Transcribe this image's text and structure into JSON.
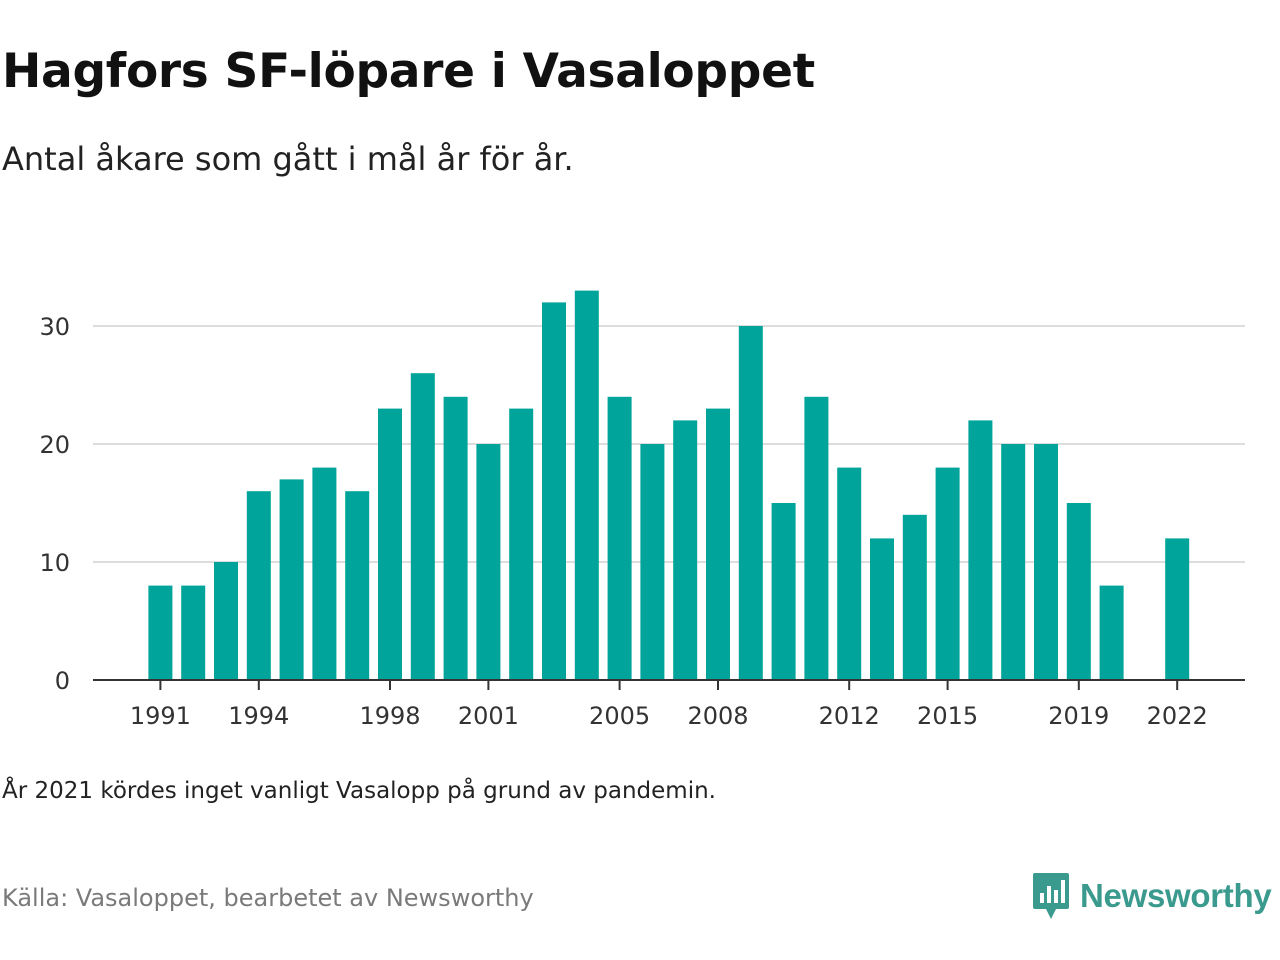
{
  "title": "Hagfors SF-löpare i Vasaloppet",
  "subtitle": "Antal åkare som gått i mål år för år.",
  "note": "År 2021 kördes inget vanligt Vasalopp på grund av pandemin.",
  "source": "Källa: Vasaloppet, bearbetet av Newsworthy",
  "brand": {
    "name": "Newsworthy",
    "icon": "newsworthy-logo-icon"
  },
  "colors": {
    "bar": "#00a49a",
    "grid": "#dddddd",
    "axis": "#333333",
    "brand": "#3a9a8e"
  },
  "chart_data": {
    "type": "bar",
    "title": "Hagfors SF-löpare i Vasaloppet",
    "subtitle": "Antal åkare som gått i mål år för år.",
    "x": [
      1991,
      1992,
      1993,
      1994,
      1995,
      1996,
      1997,
      1998,
      1999,
      2000,
      2001,
      2002,
      2003,
      2004,
      2005,
      2006,
      2007,
      2008,
      2009,
      2010,
      2011,
      2012,
      2013,
      2014,
      2015,
      2016,
      2017,
      2018,
      2019,
      2020,
      2021,
      2022
    ],
    "values": [
      8,
      8,
      10,
      16,
      17,
      18,
      16,
      23,
      26,
      24,
      20,
      23,
      32,
      33,
      24,
      20,
      22,
      23,
      30,
      15,
      24,
      18,
      12,
      14,
      18,
      22,
      20,
      20,
      15,
      8,
      null,
      12
    ],
    "x_ticks": [
      "1991",
      "1994",
      "1998",
      "2001",
      "2005",
      "2008",
      "2012",
      "2015",
      "2019",
      "2022"
    ],
    "y_ticks": [
      "0",
      "10",
      "20",
      "30"
    ],
    "ylim": [
      0,
      34
    ],
    "xlabel": "",
    "ylabel": "",
    "grid": true,
    "legend": "none"
  }
}
